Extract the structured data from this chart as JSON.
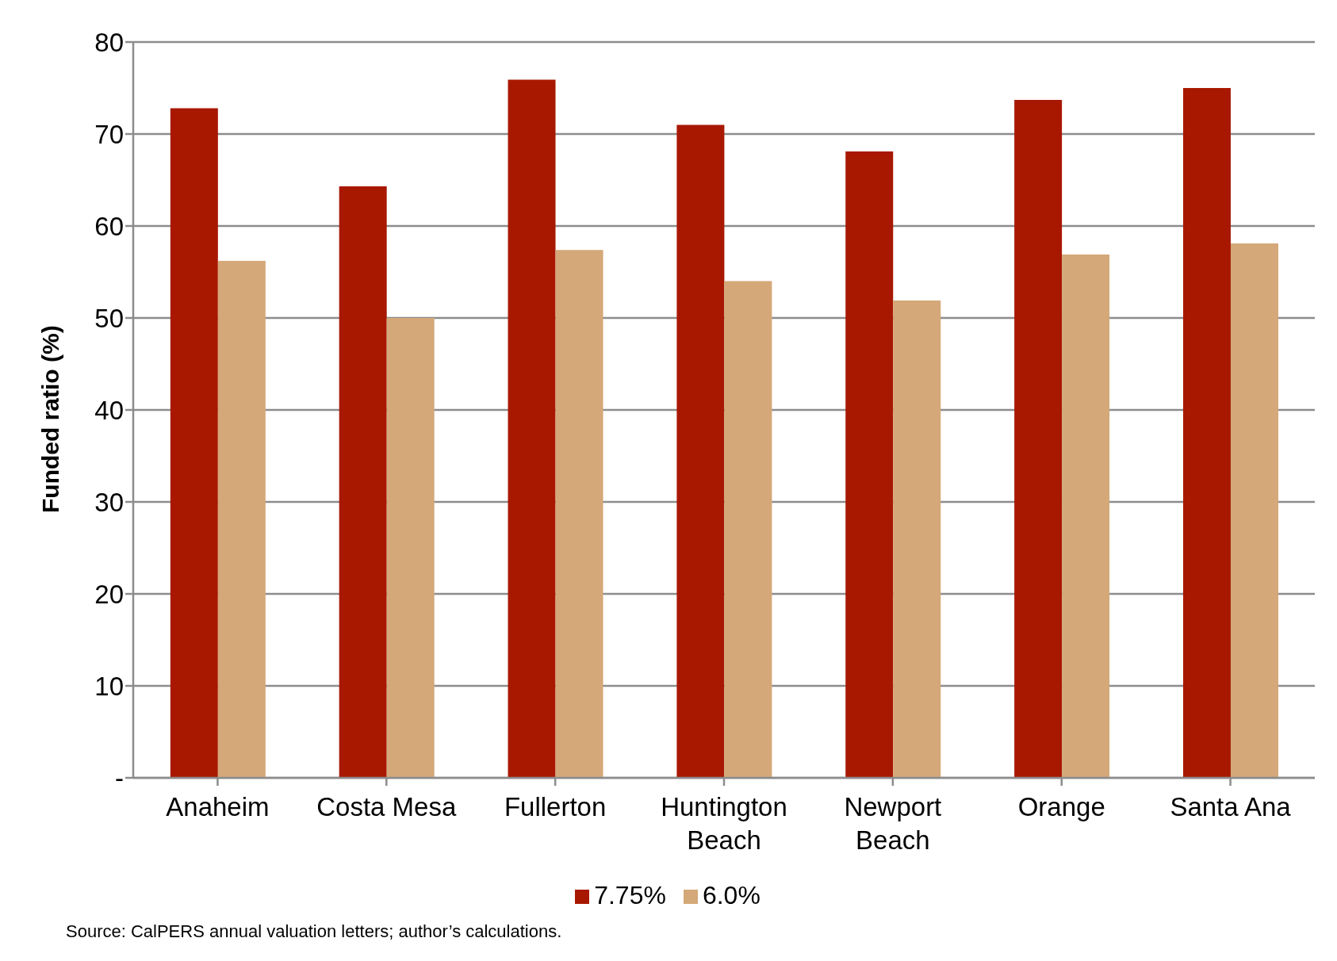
{
  "chart_data": {
    "type": "bar",
    "ylabel": "Funded ratio (%)",
    "categories": [
      "Anaheim",
      "Costa Mesa",
      "Fullerton",
      "Huntington Beach",
      "Newport Beach",
      "Orange",
      "Santa Ana"
    ],
    "series": [
      {
        "name": "7.75%",
        "color": "#a81800",
        "values": [
          72.8,
          64.3,
          75.9,
          71.0,
          68.1,
          73.7,
          75.0
        ]
      },
      {
        "name": "6.0%",
        "color": "#d4a878",
        "values": [
          56.2,
          50.0,
          57.4,
          54.0,
          51.9,
          56.9,
          58.1
        ]
      }
    ],
    "ylim": [
      0,
      80
    ],
    "yticks": [
      {
        "value": 0,
        "label": "-"
      },
      10,
      20,
      30,
      40,
      50,
      60,
      70,
      80
    ],
    "grid": "y",
    "legend": "bottom",
    "annotations": [
      "Source: CalPERS annual valuation letters; author’s calculations."
    ]
  }
}
